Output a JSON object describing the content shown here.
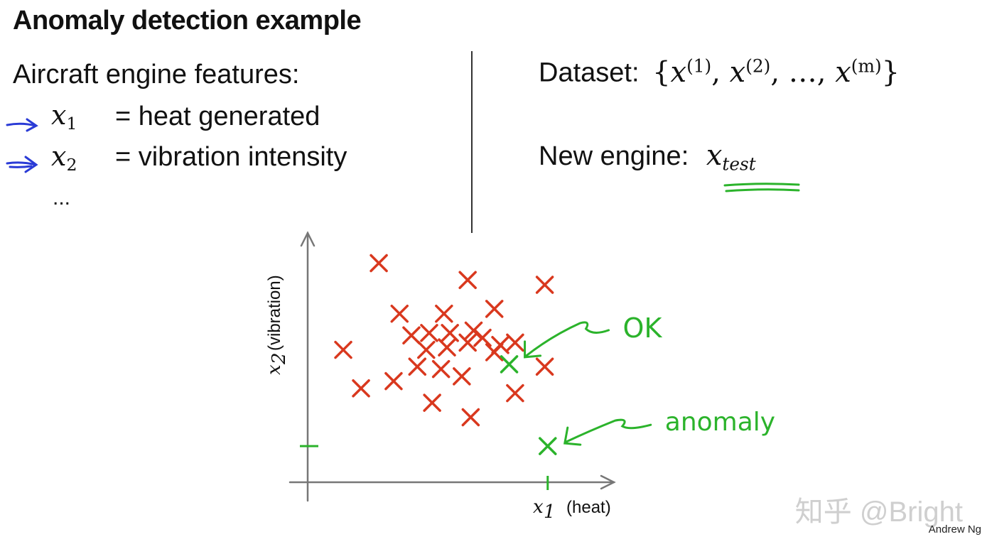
{
  "slide": {
    "title": "Anomaly detection example",
    "features_header": "Aircraft engine features:",
    "features": [
      {
        "var": "x",
        "sub": "1",
        "desc": "= heat generated"
      },
      {
        "var": "x",
        "sub": "2",
        "desc": "= vibration intensity"
      }
    ],
    "ellipsis": "...",
    "dataset_label": "Dataset:",
    "dataset_set": {
      "open": "{",
      "terms": [
        {
          "var": "x",
          "sup": "(1)"
        },
        {
          "var": "x",
          "sup": "(2)"
        },
        {
          "var": "…",
          "sup": ""
        },
        {
          "var": "x",
          "sup": "(m)"
        }
      ],
      "close": "}"
    },
    "new_engine_label": "New engine:",
    "new_engine_var": "x",
    "new_engine_sub": "test",
    "watermark": "知乎 @Bright",
    "credit": "Andrew Ng"
  },
  "chart_data": {
    "type": "scatter",
    "xlabel": {
      "var": "x",
      "sub": "1",
      "text": "(heat)"
    },
    "ylabel": {
      "var": "x",
      "sub": "2",
      "text": "(vibration)"
    },
    "xlim": [
      0,
      100
    ],
    "ylim": [
      0,
      100
    ],
    "grid": false,
    "series": [
      {
        "points": [
          [
            24,
            91
          ],
          [
            54,
            84
          ],
          [
            80,
            82
          ],
          [
            31,
            70
          ],
          [
            46,
            70
          ],
          [
            63,
            72
          ],
          [
            35,
            61
          ],
          [
            41,
            62
          ],
          [
            48,
            62
          ],
          [
            56,
            63
          ],
          [
            12,
            55
          ],
          [
            40,
            55
          ],
          [
            47,
            56
          ],
          [
            54,
            58
          ],
          [
            59,
            60
          ],
          [
            65,
            57
          ],
          [
            70,
            58
          ],
          [
            37,
            48
          ],
          [
            45,
            47
          ],
          [
            52,
            44
          ],
          [
            63,
            54
          ],
          [
            18,
            39
          ],
          [
            29,
            42
          ],
          [
            80,
            48
          ],
          [
            42,
            33
          ],
          [
            55,
            27
          ],
          [
            70,
            37
          ]
        ],
        "color": "#d9381e"
      },
      {
        "points": [
          [
            68,
            49
          ],
          [
            81,
            15
          ]
        ],
        "color": "#2bb32b"
      }
    ],
    "annotations": [
      {
        "text": "OK",
        "target": [
          68,
          49
        ],
        "color": "#2bb32b"
      },
      {
        "text": "anomaly",
        "target": [
          81,
          15
        ],
        "color": "#2bb32b"
      }
    ],
    "axis_ticks": [
      {
        "axis": "x",
        "value": 81,
        "color": "#2bb32b"
      },
      {
        "axis": "y",
        "value": 15,
        "color": "#2bb32b"
      }
    ]
  }
}
